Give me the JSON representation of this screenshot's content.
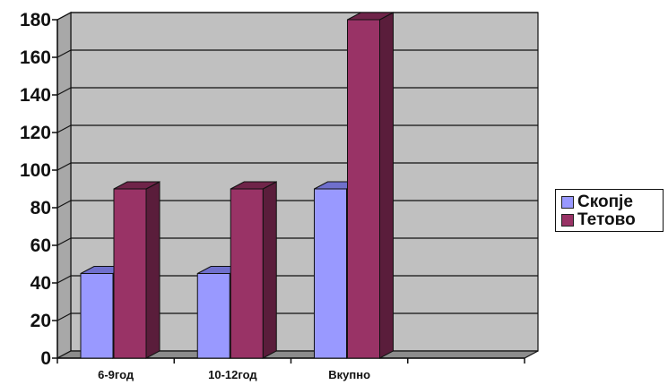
{
  "chart_data": {
    "type": "bar",
    "title": "",
    "xlabel": "",
    "ylabel": "",
    "categories": [
      "6-9год",
      "10-12год",
      "Вкупно"
    ],
    "series": [
      {
        "name": "Скопје",
        "values": [
          45,
          45,
          90
        ]
      },
      {
        "name": "Тетово",
        "values": [
          90,
          90,
          180
        ]
      }
    ],
    "ylim": [
      0,
      180
    ],
    "yticks": [
      0,
      20,
      40,
      60,
      80,
      100,
      120,
      140,
      160,
      180
    ],
    "grid": true,
    "legend_position": "right",
    "three_d": true
  },
  "colors": {
    "plot_background": "#c0c0c0",
    "gridline": "#111111",
    "series": [
      "#9999ff",
      "#993366"
    ],
    "series_side": [
      "#55558f",
      "#5a1d3b"
    ],
    "series_top": [
      "#6f6fcc",
      "#6f2449"
    ],
    "floor": "#8c8c8c"
  }
}
